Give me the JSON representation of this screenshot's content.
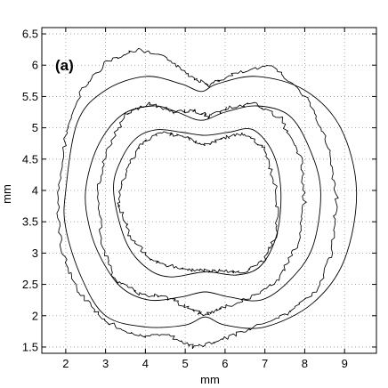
{
  "chart_data": {
    "type": "line",
    "panel_label": "(a)",
    "xlabel": "mm",
    "ylabel": "mm",
    "xlim": [
      1.4,
      9.8
    ],
    "ylim": [
      1.4,
      6.6
    ],
    "xticks": [
      2,
      3,
      4,
      5,
      6,
      7,
      8,
      9
    ],
    "xtick_labels": [
      "2",
      "3",
      "4",
      "5",
      "6",
      "7",
      "8",
      "9"
    ],
    "yticks": [
      1.5,
      2,
      2.5,
      3,
      3.5,
      4,
      4.5,
      5,
      5.5,
      6,
      6.5
    ],
    "ytick_labels": [
      "1.5",
      "2",
      "2.5",
      "3",
      "3.5",
      "4",
      "4.5",
      "5",
      "5.5",
      "6",
      "6.5"
    ],
    "grid": "dotted",
    "series": [
      {
        "style": "smooth",
        "x": [
          2.0,
          2.3,
          3.0,
          4.0,
          4.9,
          5.4,
          5.8,
          6.8,
          8.0,
          8.9,
          9.3,
          9.0,
          8.2,
          7.0,
          6.0,
          5.5,
          5.0,
          4.0,
          3.0,
          2.4,
          2.0,
          1.9
        ],
        "y": [
          4.0,
          5.1,
          5.6,
          5.82,
          5.7,
          5.58,
          5.7,
          5.82,
          5.6,
          5.0,
          4.0,
          2.9,
          2.2,
          1.82,
          1.85,
          1.98,
          1.85,
          1.82,
          2.0,
          2.6,
          3.4,
          4.0
        ]
      },
      {
        "style": "smooth",
        "x": [
          2.5,
          2.8,
          3.4,
          4.2,
          4.8,
          5.4,
          6.0,
          6.8,
          7.6,
          8.1,
          8.4,
          8.2,
          7.6,
          6.9,
          6.1,
          5.5,
          4.9,
          4.1,
          3.4,
          2.9,
          2.6,
          2.5
        ],
        "y": [
          4.0,
          4.7,
          5.2,
          5.35,
          5.25,
          5.12,
          5.25,
          5.35,
          5.2,
          4.7,
          4.0,
          3.1,
          2.55,
          2.25,
          2.3,
          2.38,
          2.3,
          2.25,
          2.45,
          2.9,
          3.4,
          4.0
        ]
      },
      {
        "style": "smooth",
        "x": [
          3.2,
          3.4,
          3.8,
          4.3,
          4.9,
          5.5,
          6.1,
          6.7,
          7.2,
          7.4,
          7.3,
          6.9,
          6.3,
          5.5,
          4.6,
          4.0,
          3.5,
          3.2
        ],
        "y": [
          4.0,
          4.5,
          4.85,
          4.97,
          4.93,
          4.88,
          4.93,
          4.97,
          4.6,
          4.0,
          3.3,
          2.8,
          2.65,
          2.7,
          2.62,
          2.78,
          3.2,
          4.0
        ]
      },
      {
        "style": "rough",
        "x": [
          1.8,
          2.0,
          2.4,
          3.0,
          3.8,
          4.6,
          5.2,
          5.6,
          6.2,
          7.2,
          8.1,
          8.6,
          8.8,
          8.7,
          8.3,
          7.6,
          6.6,
          5.8,
          5.2,
          4.6,
          3.8,
          3.0,
          2.3,
          1.9,
          1.8
        ],
        "y": [
          3.8,
          4.9,
          5.6,
          6.05,
          6.25,
          6.1,
          5.8,
          5.68,
          5.85,
          6.0,
          5.45,
          4.7,
          3.9,
          3.0,
          2.4,
          2.05,
          1.78,
          1.58,
          1.5,
          1.68,
          1.68,
          1.9,
          2.4,
          3.0,
          3.8
        ]
      },
      {
        "style": "rough",
        "x": [
          2.8,
          3.0,
          3.5,
          4.1,
          4.7,
          5.2,
          5.6,
          6.0,
          6.7,
          7.4,
          7.9,
          8.0,
          7.8,
          7.3,
          6.6,
          5.9,
          5.5,
          5.1,
          4.5,
          3.8,
          3.2,
          2.9,
          2.8
        ],
        "y": [
          4.0,
          4.6,
          5.2,
          5.4,
          5.25,
          5.28,
          5.18,
          5.3,
          5.4,
          5.15,
          4.5,
          3.8,
          3.1,
          2.55,
          2.28,
          2.12,
          2.0,
          2.12,
          2.3,
          2.35,
          2.6,
          3.2,
          4.0
        ]
      },
      {
        "style": "rough",
        "x": [
          3.3,
          3.5,
          3.9,
          4.4,
          5.0,
          5.5,
          6.0,
          6.5,
          7.0,
          7.3,
          7.3,
          7.0,
          6.4,
          5.8,
          5.3,
          4.7,
          4.1,
          3.6,
          3.3
        ],
        "y": [
          3.8,
          4.3,
          4.75,
          4.92,
          4.85,
          4.72,
          4.85,
          4.9,
          4.65,
          4.0,
          3.3,
          2.9,
          2.68,
          2.72,
          2.72,
          2.78,
          2.9,
          3.3,
          3.8
        ]
      }
    ]
  }
}
